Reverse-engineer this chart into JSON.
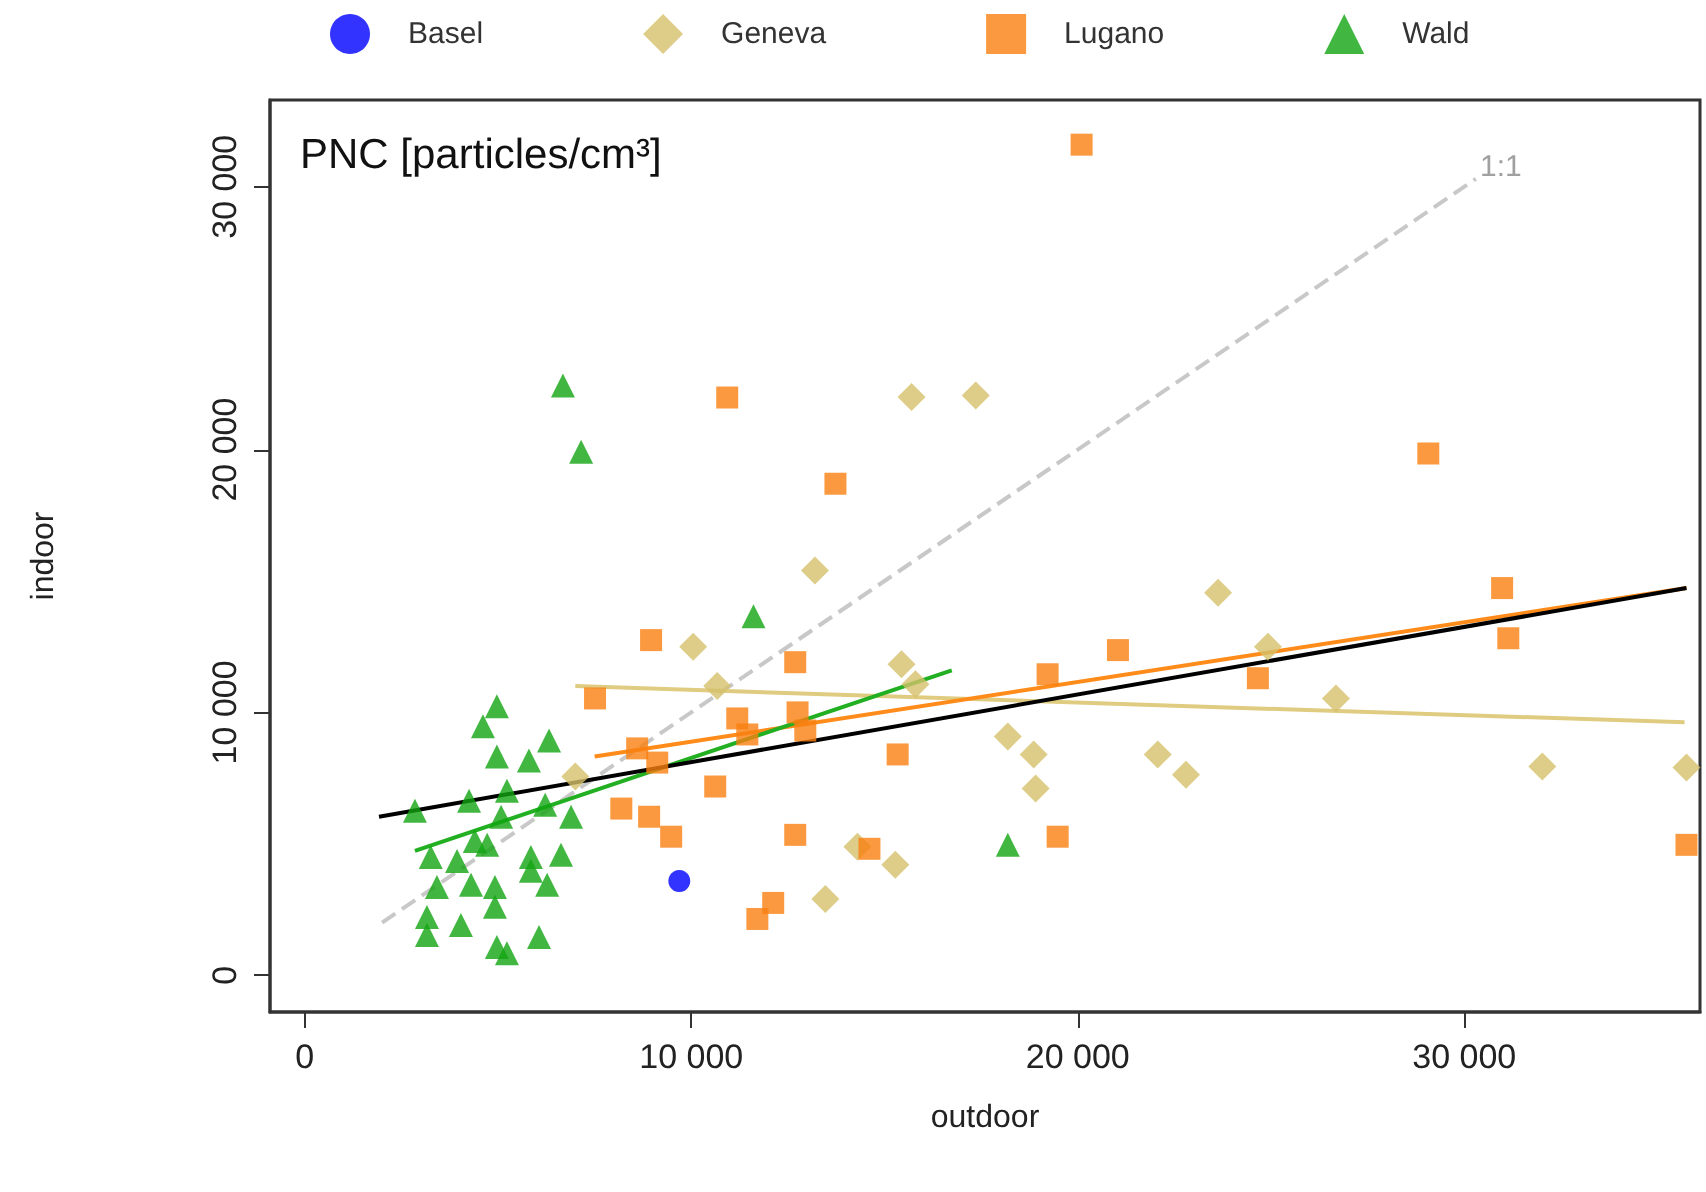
{
  "chart_data": {
    "type": "scatter",
    "title": "PNC [particles/cm³]",
    "xlabel": "outdoor",
    "ylabel": "indoor",
    "xlim": [
      -900,
      36100
    ],
    "ylim": [
      -1400,
      33300
    ],
    "xticks": [
      {
        "value": 0,
        "label": "0"
      },
      {
        "value": 10000,
        "label": "10 000"
      },
      {
        "value": 20000,
        "label": "20 000"
      },
      {
        "value": 30000,
        "label": "30 000"
      }
    ],
    "yticks": [
      {
        "value": 0,
        "label": "0"
      },
      {
        "value": 10000,
        "label": "10 000"
      },
      {
        "value": 20000,
        "label": "20 000"
      },
      {
        "value": 30000,
        "label": "30 000"
      }
    ],
    "grid": false,
    "legend": "top",
    "annotations": [
      "1:1"
    ],
    "series": [
      {
        "name": "Basel",
        "color": "#0000ff",
        "marker": "circle",
        "x": [
          9690
        ],
        "values": [
          3580
        ]
      },
      {
        "name": "Geneva",
        "color": "#d4c06a",
        "marker": "diamond",
        "x": [
          23630,
          13200,
          15700,
          17360,
          10050,
          10670,
          15440,
          15800,
          18190,
          18860,
          18910,
          22070,
          22800,
          13470,
          15280,
          14300,
          7000,
          24920,
          26680,
          32020,
          35750
        ],
        "values": [
          14550,
          15400,
          22000,
          22060,
          12500,
          11000,
          11830,
          11070,
          9080,
          8400,
          7100,
          8400,
          7630,
          2900,
          4200,
          4890,
          7560,
          12500,
          10530,
          7940,
          7900
        ]
      },
      {
        "name": "Lugano",
        "color": "#f98010",
        "marker": "square",
        "x": [
          20100,
          10930,
          13730,
          29070,
          30980,
          31140,
          21040,
          24660,
          19480,
          35750,
          19220,
          8960,
          7510,
          12690,
          11190,
          11450,
          12750,
          12950,
          8600,
          9120,
          15340,
          10620,
          8190,
          8910,
          9480,
          12690,
          14610,
          12120,
          11710
        ],
        "values": [
          31600,
          21980,
          18700,
          19850,
          14730,
          12820,
          12370,
          11300,
          5270,
          4960,
          11450,
          12750,
          10530,
          11910,
          9770,
          9160,
          10000,
          9310,
          8630,
          8090,
          8400,
          7180,
          6340,
          6030,
          5270,
          5340,
          4810,
          2750,
          2140
        ]
      },
      {
        "name": "Wald",
        "color": "#11a511",
        "marker": "triangle",
        "x": [
          6680,
          7150,
          11610,
          18190,
          4970,
          4610,
          6320,
          4970,
          5800,
          2850,
          4250,
          5230,
          6220,
          5080,
          6890,
          4400,
          4720,
          3260,
          3940,
          5850,
          6630,
          3420,
          4300,
          4920,
          5850,
          6270,
          3160,
          4040,
          4920,
          4970,
          6060,
          3160,
          5230
        ],
        "values": [
          22440,
          19920,
          13660,
          4960,
          10230,
          9470,
          8930,
          8320,
          8170,
          6260,
          6640,
          7020,
          6490,
          6030,
          6030,
          5110,
          4960,
          4500,
          4350,
          4500,
          4580,
          3360,
          3440,
          3360,
          3970,
          3440,
          2210,
          1910,
          2600,
          1070,
          1450,
          1530,
          840
        ]
      },
      {
        "type": "line",
        "color": "#c8c8c8",
        "marker": "none",
        "line_style": "dashed",
        "x": [
          2000,
          30300
        ],
        "values": [
          2000,
          30300
        ]
      },
      {
        "type": "line",
        "color": "#e0cc80",
        "marker": "none",
        "line_style": "solid",
        "x": [
          7000,
          35700
        ],
        "values": [
          11000,
          9620
        ]
      },
      {
        "type": "line",
        "color": "#ff8c1a",
        "marker": "none",
        "line_style": "solid",
        "x": [
          7500,
          35750
        ],
        "values": [
          8320,
          14730
        ]
      },
      {
        "type": "line",
        "color": "#22b022",
        "marker": "none",
        "line_style": "solid",
        "x": [
          2850,
          16740
        ],
        "values": [
          4730,
          11600
        ]
      },
      {
        "type": "line",
        "color": "#000000",
        "marker": "none",
        "line_style": "solid",
        "x": [
          1920,
          35750
        ],
        "values": [
          6030,
          14730
        ]
      }
    ]
  }
}
